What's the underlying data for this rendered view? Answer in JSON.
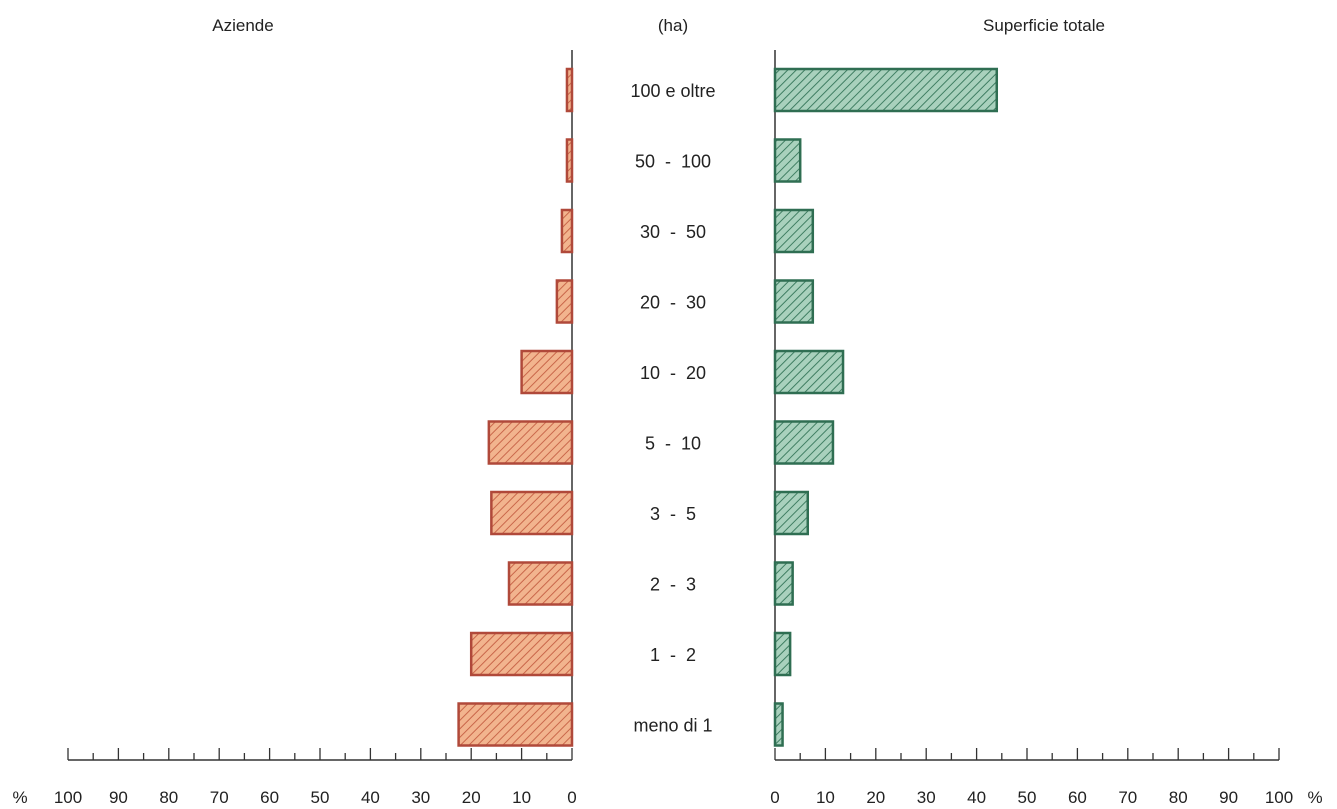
{
  "chart_data": {
    "type": "bar",
    "layout": "back-to-back horizontal bars",
    "categories": [
      "100 e oltre",
      "50  -  100",
      "30  -  50",
      "20  -  30",
      "10  -  20",
      "5  -  10",
      "3  -  5",
      "2  -  3",
      "1  -  2",
      "meno di 1"
    ],
    "center_label": "(ha)",
    "unit_symbol": "%",
    "series": [
      {
        "name": "Aziende",
        "side": "left",
        "color": "#e9a07a",
        "edge_color": "#b0493a",
        "values": [
          1,
          1,
          2,
          3,
          10,
          16.5,
          16,
          12.5,
          20,
          22.5
        ]
      },
      {
        "name": "Superficie totale",
        "side": "right",
        "color": "#8fbfa8",
        "edge_color": "#2f6e52",
        "values": [
          44,
          5,
          7.5,
          7.5,
          13.5,
          11.5,
          6.5,
          3.5,
          3,
          1.5
        ]
      }
    ],
    "xlim": [
      0,
      100
    ],
    "left_ticks": [
      "100",
      "90",
      "80",
      "70",
      "60",
      "50",
      "40",
      "30",
      "20",
      "10",
      "0"
    ],
    "right_ticks": [
      "0",
      "10",
      "20",
      "30",
      "40",
      "50",
      "60",
      "70",
      "80",
      "90",
      "100"
    ],
    "grid": false
  },
  "header": {
    "left_title": "Aziende",
    "center_title": "(ha)",
    "right_title": "Superficie totale"
  }
}
